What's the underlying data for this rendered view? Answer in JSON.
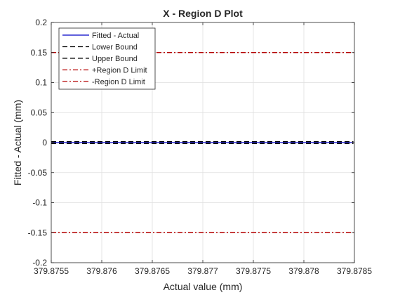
{
  "window": {
    "background": "#ffffff"
  },
  "chart_data": {
    "type": "line",
    "title": "X - Region D Plot",
    "xlabel": "Actual value (mm)",
    "ylabel": "Fitted - Actual (mm)",
    "xlim": [
      379.8755,
      379.8785
    ],
    "ylim": [
      -0.2,
      0.2
    ],
    "grid": true,
    "legend_location": "top-left",
    "x_ticks": [
      379.8755,
      379.876,
      379.8765,
      379.877,
      379.8775,
      379.878,
      379.8785
    ],
    "x_tick_labels": [
      "379.8755",
      "379.876",
      "379.8765",
      "379.877",
      "379.8775",
      "379.878",
      "379.8785"
    ],
    "y_ticks": [
      -0.2,
      -0.15,
      -0.1,
      -0.05,
      0,
      0.05,
      0.1,
      0.15,
      0.2
    ],
    "y_tick_labels": [
      "-0.2",
      "-0.15",
      "-0.1",
      "-0.05",
      "0",
      "0.05",
      "0.1",
      "0.15",
      "0.2"
    ],
    "series": [
      {
        "name": "Fitted - Actual",
        "color": "#0000c8",
        "style": "solid",
        "x": [
          379.8755,
          379.87849
        ],
        "y": [
          0,
          0
        ]
      },
      {
        "name": "Lower Bound",
        "color": "#000000",
        "style": "dashed",
        "x": [
          379.8755,
          379.87849
        ],
        "y": [
          -0.0015,
          -0.0015
        ]
      },
      {
        "name": "Upper Bound",
        "color": "#000000",
        "style": "dashed",
        "x": [
          379.8755,
          379.87849
        ],
        "y": [
          0.0015,
          0.0015
        ]
      },
      {
        "name": "+Region D Limit",
        "color": "#b40000",
        "style": "dashdot",
        "x": [
          379.8755,
          379.87849
        ],
        "y": [
          0.15,
          0.15
        ]
      },
      {
        "name": "-Region D Limit",
        "color": "#b40000",
        "style": "dashdot",
        "x": [
          379.8755,
          379.87849
        ],
        "y": [
          -0.15,
          -0.15
        ]
      }
    ]
  }
}
